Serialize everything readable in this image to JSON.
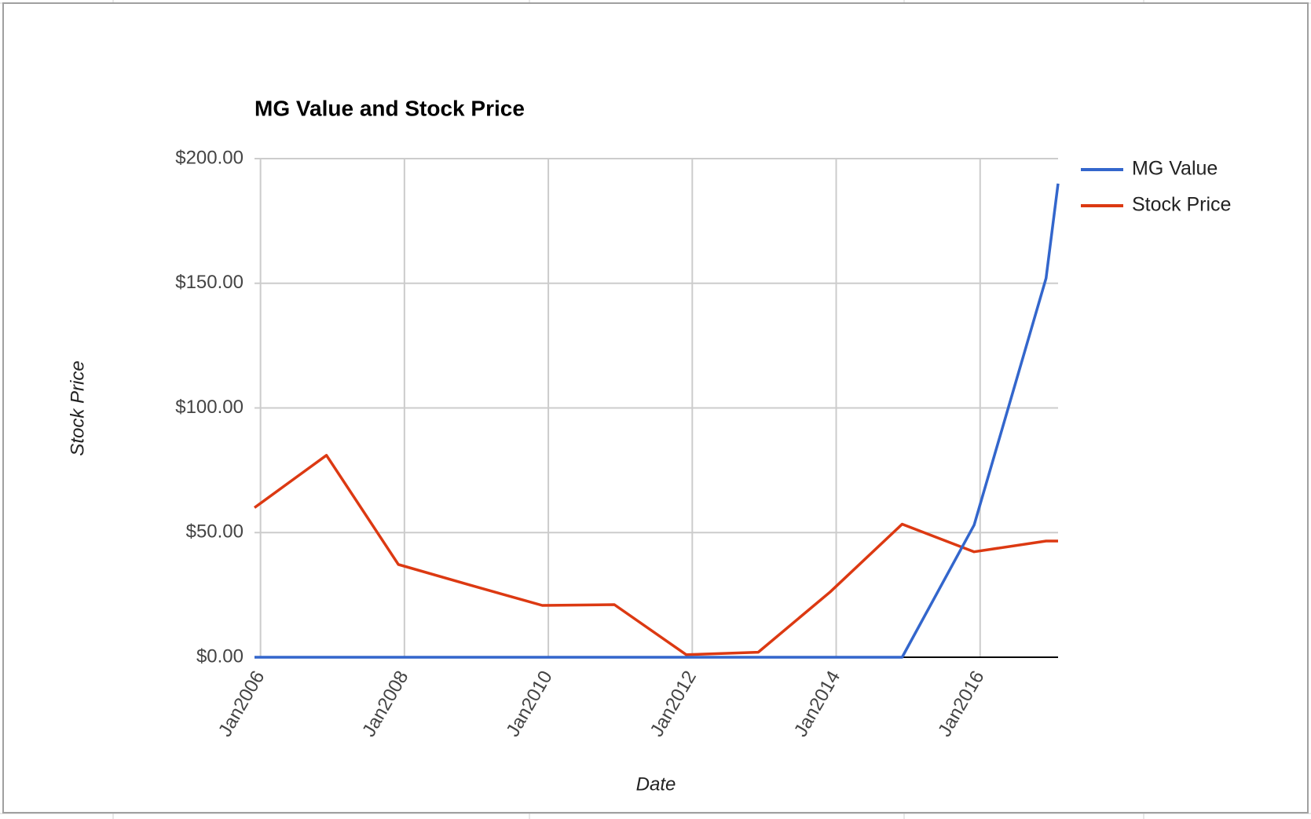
{
  "chart_data": {
    "type": "line",
    "title": "MG Value and Stock Price",
    "x_label": "Date",
    "y_label": "Stock Price",
    "x": [
      "2005-12",
      "2006-12",
      "2007-12",
      "2008-12",
      "2009-12",
      "2010-12",
      "2011-12",
      "2012-12",
      "2013-12",
      "2014-12",
      "2015-12",
      "2016-12",
      "2017-02"
    ],
    "series": [
      {
        "name": "MG Value",
        "color": "#3366cc",
        "values": [
          0,
          0,
          0,
          0,
          0,
          0,
          0,
          0,
          0,
          0,
          53,
          152,
          190
        ]
      },
      {
        "name": "Stock Price",
        "color": "#dc3912",
        "values": [
          60,
          81,
          37.2,
          28.9,
          20.8,
          21.1,
          1,
          2,
          26.2,
          53.4,
          42.3,
          46.6,
          46.6
        ]
      }
    ],
    "xlim": [
      "2005-12",
      "2017-02"
    ],
    "xticks": [
      {
        "value": "2006-01",
        "label": "Jan2006"
      },
      {
        "value": "2008-01",
        "label": "Jan2008"
      },
      {
        "value": "2010-01",
        "label": "Jan2010"
      },
      {
        "value": "2012-01",
        "label": "Jan2012"
      },
      {
        "value": "2014-01",
        "label": "Jan2014"
      },
      {
        "value": "2016-01",
        "label": "Jan2016"
      }
    ],
    "ylim": [
      0,
      200
    ],
    "yticks": [
      {
        "value": 0,
        "label": "$0.00"
      },
      {
        "value": 50,
        "label": "$50.00"
      },
      {
        "value": 100,
        "label": "$100.00"
      },
      {
        "value": 150,
        "label": "$150.00"
      },
      {
        "value": 200,
        "label": "$200.00"
      }
    ],
    "grid": true,
    "legend": "right"
  }
}
